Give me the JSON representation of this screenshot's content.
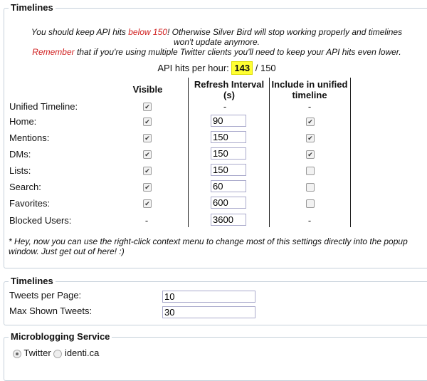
{
  "section1": {
    "legend": "Timelines",
    "warning_a": "You should keep API hits ",
    "warning_red": "below 150",
    "warning_b": "! Otherwise Silver Bird will stop working properly and timelines won't update anymore.",
    "remember_red": "Remember",
    "remember_b": " that if you're using multiple Twitter clients you'll need to keep your API hits even lower.",
    "api_label": "API hits per hour:",
    "api_value": "143",
    "api_max": "/ 150",
    "headers": {
      "visible": "Visible",
      "refresh": "Refresh Interval (s)",
      "unified": "Include in unified timeline"
    },
    "rows": [
      {
        "label": "Unified Timeline:",
        "visible": true,
        "refresh": "-",
        "unified": "-"
      },
      {
        "label": "Home:",
        "visible": true,
        "refresh": "90",
        "unified": true
      },
      {
        "label": "Mentions:",
        "visible": true,
        "refresh": "150",
        "unified": true
      },
      {
        "label": "DMs:",
        "visible": true,
        "refresh": "150",
        "unified": true
      },
      {
        "label": "Lists:",
        "visible": true,
        "refresh": "150",
        "unified": false
      },
      {
        "label": "Search:",
        "visible": true,
        "refresh": "60",
        "unified": false
      },
      {
        "label": "Favorites:",
        "visible": true,
        "refresh": "600",
        "unified": false
      },
      {
        "label": "Blocked Users:",
        "visible": "-",
        "refresh": "3600",
        "unified": "-"
      }
    ],
    "footnote": "* Hey, now you can use the right-click context menu to change most of this settings directly into the popup window. Just get out of here! :)"
  },
  "section2": {
    "legend": "Timelines",
    "tweets_per_page_label": "Tweets per Page:",
    "tweets_per_page": "10",
    "max_shown_label": "Max Shown Tweets:",
    "max_shown": "30"
  },
  "section3": {
    "legend": "Microblogging Service",
    "options": [
      "Twitter",
      "identi.ca"
    ],
    "selected": "Twitter"
  },
  "colors": {
    "warning": "#d02020",
    "highlight": "#ffff33"
  }
}
